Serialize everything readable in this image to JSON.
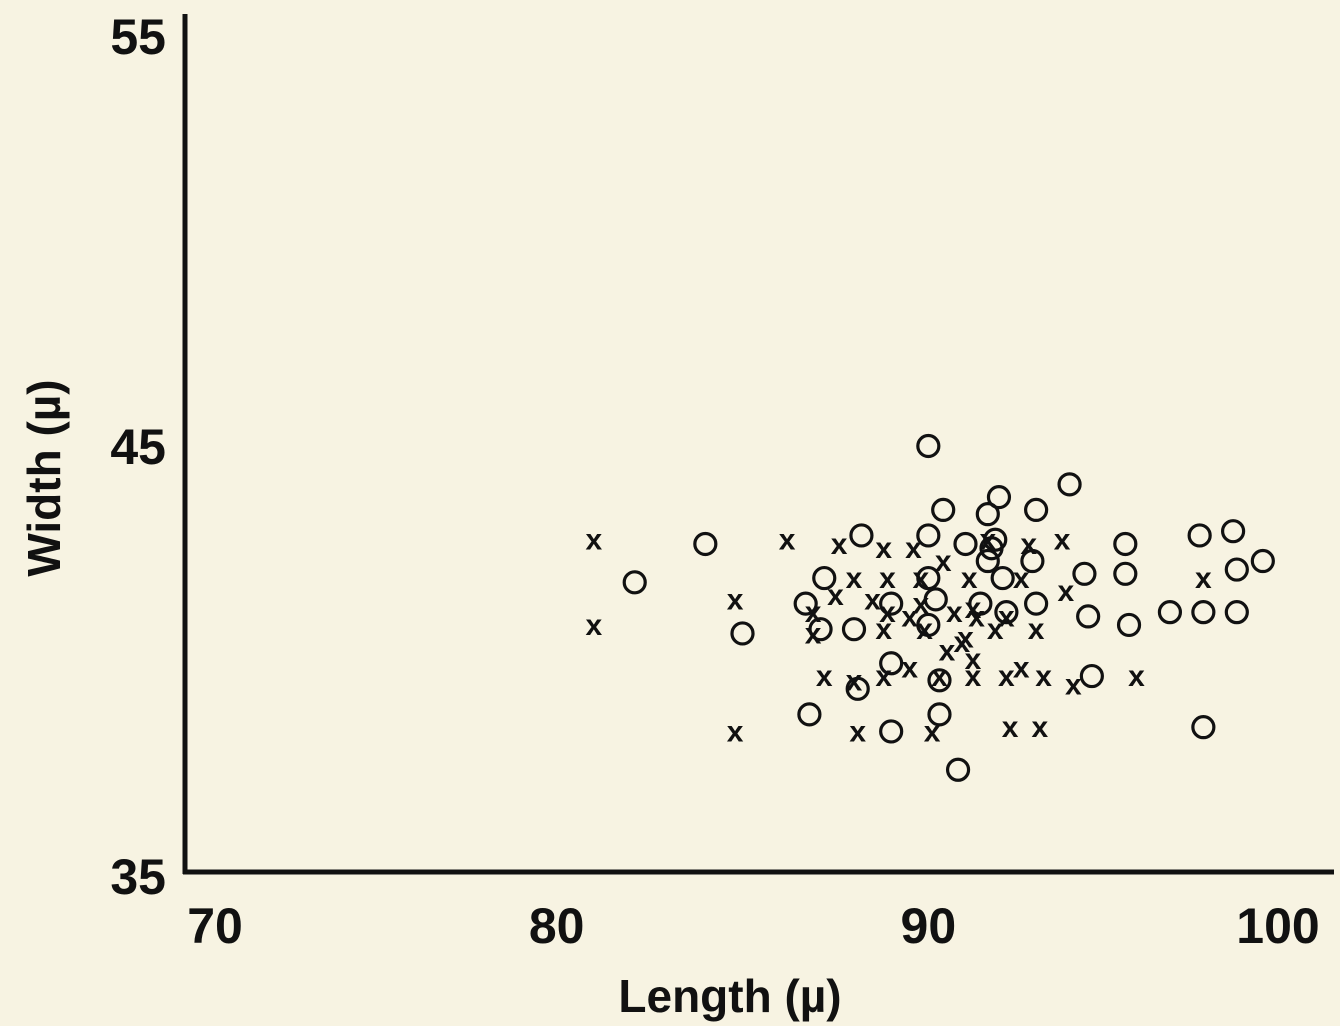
{
  "chart_data": {
    "type": "scatter",
    "title": "",
    "xlabel": "Length (µ)",
    "ylabel": "Width (µ)",
    "xlim": [
      70,
      100
    ],
    "ylim": [
      35,
      55
    ],
    "xticks": [
      70,
      80,
      90,
      100
    ],
    "yticks": [
      35,
      45,
      55
    ],
    "xtick_labels": [
      "70",
      "80",
      "90",
      "100"
    ],
    "ytick_labels": [
      "35",
      "45",
      "55"
    ],
    "grid": false,
    "legend": "none",
    "series": [
      {
        "marker": "circle",
        "points": [
          [
            90.0,
            45.0
          ],
          [
            93.8,
            44.1
          ],
          [
            91.9,
            43.8
          ],
          [
            90.4,
            43.5
          ],
          [
            91.6,
            43.4
          ],
          [
            92.9,
            43.5
          ],
          [
            84.0,
            42.7
          ],
          [
            88.2,
            42.9
          ],
          [
            90.0,
            42.9
          ],
          [
            91.0,
            42.7
          ],
          [
            91.8,
            42.8
          ],
          [
            95.3,
            42.7
          ],
          [
            97.3,
            42.9
          ],
          [
            98.2,
            43.0
          ],
          [
            92.8,
            42.3
          ],
          [
            91.7,
            42.6
          ],
          [
            91.6,
            42.3
          ],
          [
            82.1,
            41.8
          ],
          [
            87.2,
            41.9
          ],
          [
            90.0,
            41.9
          ],
          [
            92.0,
            41.9
          ],
          [
            94.2,
            42.0
          ],
          [
            95.3,
            42.0
          ],
          [
            98.3,
            42.1
          ],
          [
            99.0,
            42.3
          ],
          [
            86.7,
            41.3
          ],
          [
            89.0,
            41.3
          ],
          [
            90.2,
            41.4
          ],
          [
            91.4,
            41.3
          ],
          [
            92.9,
            41.3
          ],
          [
            85.0,
            40.6
          ],
          [
            87.1,
            40.7
          ],
          [
            88.0,
            40.7
          ],
          [
            90.0,
            40.8
          ],
          [
            92.1,
            41.1
          ],
          [
            94.3,
            41.0
          ],
          [
            95.4,
            40.8
          ],
          [
            96.5,
            41.1
          ],
          [
            97.4,
            41.1
          ],
          [
            98.3,
            41.1
          ],
          [
            89.0,
            39.9
          ],
          [
            90.3,
            39.5
          ],
          [
            94.4,
            39.6
          ],
          [
            88.1,
            39.3
          ],
          [
            86.8,
            38.7
          ],
          [
            90.3,
            38.7
          ],
          [
            89.0,
            38.3
          ],
          [
            97.4,
            38.4
          ],
          [
            90.8,
            37.4
          ]
        ]
      },
      {
        "marker": "x",
        "points": [
          [
            81.0,
            42.8
          ],
          [
            86.2,
            42.8
          ],
          [
            87.6,
            42.7
          ],
          [
            88.8,
            42.6
          ],
          [
            89.6,
            42.6
          ],
          [
            91.6,
            42.8
          ],
          [
            92.7,
            42.7
          ],
          [
            93.6,
            42.8
          ],
          [
            90.4,
            42.3
          ],
          [
            88.0,
            41.9
          ],
          [
            88.9,
            41.9
          ],
          [
            89.8,
            41.9
          ],
          [
            91.1,
            41.9
          ],
          [
            92.5,
            41.9
          ],
          [
            93.7,
            41.6
          ],
          [
            97.4,
            41.9
          ],
          [
            84.8,
            41.4
          ],
          [
            87.5,
            41.5
          ],
          [
            88.5,
            41.4
          ],
          [
            89.8,
            41.3
          ],
          [
            91.2,
            41.2
          ],
          [
            86.9,
            41.1
          ],
          [
            88.9,
            41.1
          ],
          [
            89.5,
            41.0
          ],
          [
            90.7,
            41.1
          ],
          [
            91.3,
            41.0
          ],
          [
            92.1,
            41.0
          ],
          [
            81.0,
            40.8
          ],
          [
            88.8,
            40.7
          ],
          [
            89.9,
            40.7
          ],
          [
            91.0,
            40.5
          ],
          [
            91.8,
            40.7
          ],
          [
            92.9,
            40.7
          ],
          [
            86.9,
            40.6
          ],
          [
            90.9,
            40.4
          ],
          [
            90.5,
            40.2
          ],
          [
            91.2,
            40.0
          ],
          [
            92.5,
            39.8
          ],
          [
            89.5,
            39.8
          ],
          [
            87.2,
            39.6
          ],
          [
            88.0,
            39.5
          ],
          [
            88.8,
            39.6
          ],
          [
            90.3,
            39.6
          ],
          [
            91.2,
            39.6
          ],
          [
            92.1,
            39.6
          ],
          [
            93.1,
            39.6
          ],
          [
            93.9,
            39.4
          ],
          [
            95.6,
            39.6
          ],
          [
            84.8,
            38.3
          ],
          [
            88.1,
            38.3
          ],
          [
            90.1,
            38.3
          ],
          [
            92.2,
            38.4
          ],
          [
            93.0,
            38.4
          ]
        ]
      }
    ]
  }
}
